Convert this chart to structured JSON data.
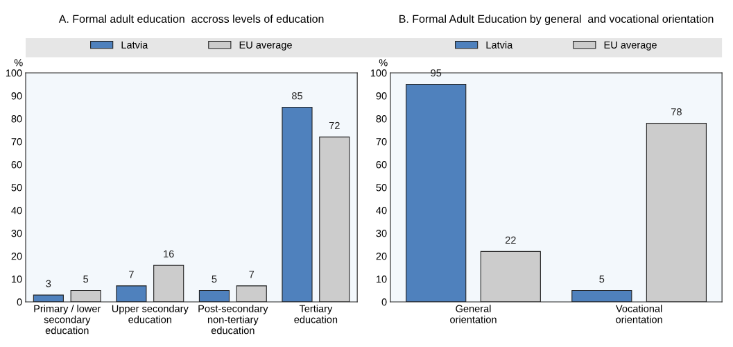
{
  "chart_data": [
    {
      "type": "bar",
      "title": "A. Formal adult education  accross levels of education",
      "ylabel": "%",
      "categories": [
        "Primary / lower secondary education",
        "Upper secondary education",
        "Post-secondary non-tertiary education",
        "Tertiary education"
      ],
      "series": [
        {
          "name": "Latvia",
          "color": "#4f81bd",
          "values": [
            3,
            7,
            5,
            85
          ]
        },
        {
          "name": "EU average",
          "color": "#cccccc",
          "values": [
            5,
            16,
            7,
            72
          ]
        }
      ],
      "ylim": [
        0,
        100
      ],
      "yticks": [
        0,
        10,
        20,
        30,
        40,
        50,
        60,
        70,
        80,
        90,
        100
      ],
      "data_labels": true,
      "grid": false,
      "legend": "top"
    },
    {
      "type": "bar",
      "title": "B. Formal Adult Education by general  and vocational orientation",
      "ylabel": "%",
      "categories": [
        "General orientation",
        "Vocational orientation"
      ],
      "series": [
        {
          "name": "Latvia",
          "color": "#4f81bd",
          "values": [
            95,
            5
          ]
        },
        {
          "name": "EU average",
          "color": "#cccccc",
          "values": [
            22,
            78
          ]
        }
      ],
      "ylim": [
        0,
        100
      ],
      "yticks": [
        0,
        10,
        20,
        30,
        40,
        50,
        60,
        70,
        80,
        90,
        100
      ],
      "data_labels": true,
      "grid": false,
      "legend": "top"
    }
  ]
}
